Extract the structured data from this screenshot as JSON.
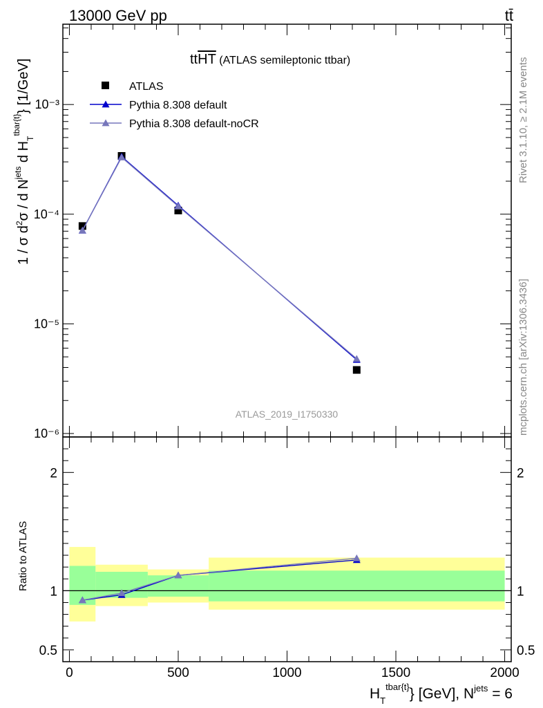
{
  "header": {
    "left": "13000 GeV pp",
    "right": "tt̄"
  },
  "side": {
    "top": "Rivet 3.1.10, ≥ 2.1M events",
    "bottom": "mcplots.cern.ch [arXiv:1306.3436]"
  },
  "watermark": "ATLAS_2019_I1750330",
  "chart_data": [
    {
      "type": "scatter",
      "title": "tt HT (ATLAS semileptonic ttbar)",
      "ylabel": "1 / σ d²σ / d N^jets d H_T^tbar{t} [1/GeV]",
      "xlabel": "H_T^tbar{t} [GeV], N^jets = 6",
      "xlim": [
        -30,
        2030
      ],
      "ylim": [
        9.3e-07,
        0.0054
      ],
      "yscale": "log",
      "y_tick_labels": [
        "10⁻⁶",
        "10⁻⁵",
        "10⁻⁴",
        "10⁻³"
      ],
      "x_tick_labels": [
        "0",
        "500",
        "1000",
        "1500",
        "2000"
      ],
      "legend_position": "top-left",
      "series": [
        {
          "name": "ATLAS",
          "style": "black-square-markers",
          "color": "#000000",
          "x": [
            60,
            240,
            500,
            1320
          ],
          "y": [
            7.8e-05,
            0.00034,
            0.000108,
            3.8e-06
          ]
        },
        {
          "name": "Pythia 8.308 default",
          "style": "line-with-triangles",
          "color": "#0000cc",
          "x": [
            60,
            240,
            500,
            1320
          ],
          "y": [
            7.1e-05,
            0.000335,
            0.00012,
            4.7e-06
          ]
        },
        {
          "name": "Pythia 8.308 default-noCR",
          "style": "line-with-triangles",
          "color": "#7777bb",
          "x": [
            60,
            240,
            500,
            1320
          ],
          "y": [
            7.1e-05,
            0.00033,
            0.000118,
            4.8e-06
          ]
        }
      ]
    },
    {
      "type": "line",
      "ylabel": "Ratio to ATLAS",
      "ylim": [
        0.4,
        2.3
      ],
      "y_tick_labels": [
        "0.5",
        "1",
        "2"
      ],
      "reference_line": 1,
      "bands": [
        {
          "name": "stat+syst (outer)",
          "color": "#ffff99",
          "bins": [
            [
              0,
              120
            ],
            [
              120,
              360
            ],
            [
              360,
              640
            ],
            [
              640,
              2000
            ]
          ],
          "low": [
            0.74,
            0.87,
            0.9,
            0.84
          ],
          "high": [
            1.37,
            1.22,
            1.18,
            1.28
          ]
        },
        {
          "name": "stat (inner)",
          "color": "#99ff99",
          "bins": [
            [
              0,
              120
            ],
            [
              120,
              360
            ],
            [
              360,
              640
            ],
            [
              640,
              2000
            ]
          ],
          "low": [
            0.88,
            0.94,
            0.95,
            0.91
          ],
          "high": [
            1.21,
            1.16,
            1.13,
            1.17
          ]
        }
      ],
      "series": [
        {
          "name": "Pythia 8.308 default",
          "color": "#0000cc",
          "x": [
            60,
            240,
            500,
            1320
          ],
          "y": [
            0.92,
            0.965,
            1.13,
            1.26
          ]
        },
        {
          "name": "Pythia 8.308 default-noCR",
          "color": "#7777bb",
          "x": [
            60,
            240,
            500,
            1320
          ],
          "y": [
            0.92,
            0.98,
            1.13,
            1.275
          ]
        }
      ]
    }
  ]
}
